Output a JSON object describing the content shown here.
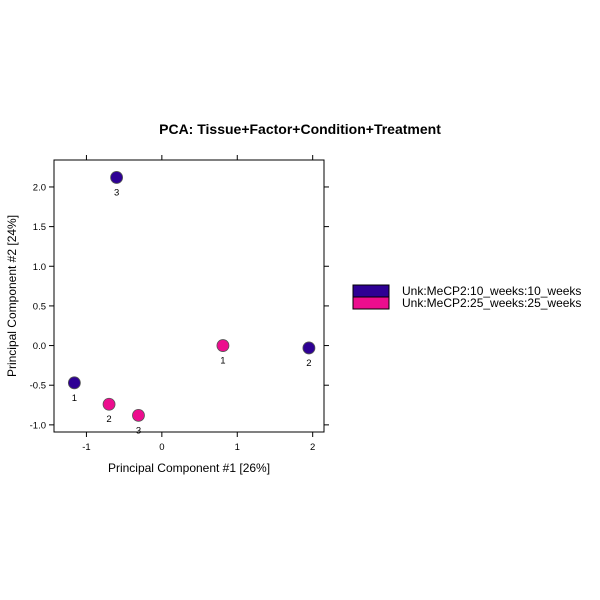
{
  "chart_data": {
    "type": "scatter",
    "title": "PCA: Tissue+Factor+Condition+Treatment",
    "xlabel": "Principal Component #1 [26%]",
    "ylabel": "Principal Component #2 [24%]",
    "xlim": [
      -1.43,
      2.15
    ],
    "ylim": [
      -1.09,
      2.34
    ],
    "xticks": [
      -1,
      0,
      1,
      2
    ],
    "xtick_labels": [
      "-1",
      "0",
      "1",
      "2"
    ],
    "yticks": [
      -1.0,
      -0.5,
      0.0,
      0.5,
      1.0,
      1.5,
      2.0
    ],
    "ytick_labels": [
      "-1.0",
      "-0.5",
      "0.0",
      "0.5",
      "1.0",
      "1.5",
      "2.0"
    ],
    "grid": false,
    "legend_position": "right",
    "series": [
      {
        "name": "Unk:MeCP2:10_weeks:10_weeks",
        "color": "#2e0094",
        "points": [
          {
            "x": -1.16,
            "y": -0.47,
            "label": "1"
          },
          {
            "x": 1.95,
            "y": -0.03,
            "label": "2"
          },
          {
            "x": -0.6,
            "y": 2.12,
            "label": "3"
          }
        ]
      },
      {
        "name": "Unk:MeCP2:25_weeks:25_weeks",
        "color": "#ec0d8e",
        "points": [
          {
            "x": 0.81,
            "y": 0.0,
            "label": "1"
          },
          {
            "x": -0.7,
            "y": -0.74,
            "label": "2"
          },
          {
            "x": -0.31,
            "y": -0.88,
            "label": "3"
          }
        ]
      }
    ]
  }
}
